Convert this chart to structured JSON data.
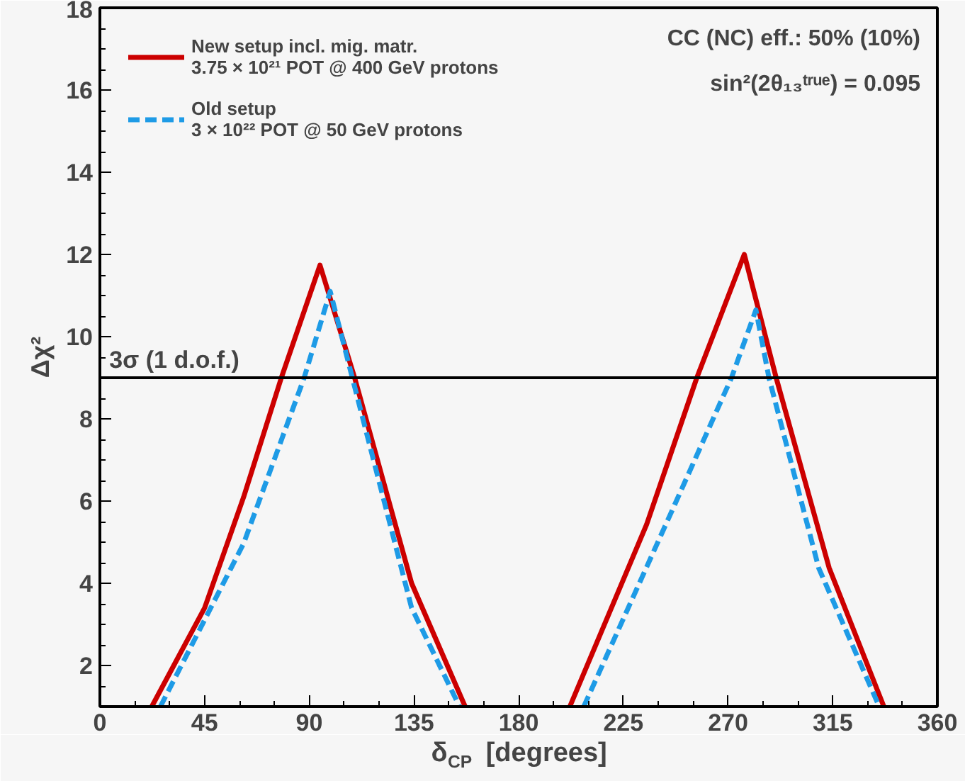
{
  "chart_data": {
    "type": "line",
    "xlabel": "δ$_{CP}$ [degrees]",
    "ylabel": "Δχ²",
    "xlim": [
      0,
      360
    ],
    "ylim": [
      1,
      18
    ],
    "xticks": [
      0,
      45,
      90,
      135,
      180,
      225,
      270,
      315,
      360
    ],
    "yticks": [
      2,
      4,
      6,
      8,
      10,
      12,
      14,
      16,
      18
    ],
    "grid": false,
    "legend": "top left",
    "annotations": [
      "CC (NC) eff.: 50% (10%)",
      "sin²(2θ₁₃ᵗʳᵘᵉ) = 0.095"
    ],
    "ref_lines": [
      {
        "axis": "y",
        "value": 9,
        "label": "3σ (1 d.o.f.)",
        "color": "#000000"
      }
    ],
    "series": [
      {
        "name": "New setup incl. mig. matr.\n3.75 × 10²¹ POT @ 400 GeV protons",
        "color": "#cc0000",
        "line_style": "solid",
        "x": [
          22.3,
          45,
          61.8,
          78,
          94.6,
          109.5,
          134,
          157,
          null,
          202,
          235,
          256.6,
          277,
          290.7,
          313.5,
          337
        ],
        "values": [
          1,
          3.4,
          6.1,
          9,
          11.74,
          9,
          4.0,
          1,
          null,
          1,
          5.43,
          9,
          12.0,
          9,
          4.37,
          1
        ]
      },
      {
        "name": "Old setup\n3 × 10²² POT @ 50 GeV protons",
        "color": "#1e9be6",
        "line_style": "dashed",
        "x": [
          26,
          61.8,
          87.8,
          99,
          108.5,
          134,
          154.6,
          null,
          208,
          247,
          271.5,
          282,
          287.6,
          309,
          335
        ],
        "values": [
          1,
          4.97,
          9,
          11.1,
          9,
          3.4,
          1,
          null,
          1,
          5.9,
          9,
          10.65,
          9,
          4.37,
          1
        ]
      }
    ]
  }
}
